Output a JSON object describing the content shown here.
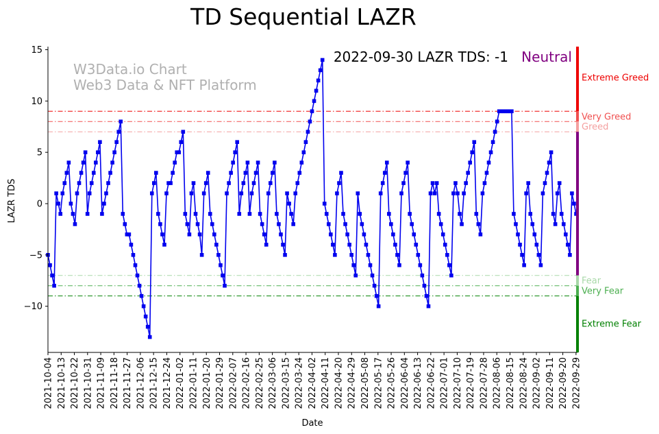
{
  "chart_data": {
    "type": "line",
    "title": "TD Sequential LAZR",
    "xlabel": "Date",
    "ylabel": "LAZR TDS",
    "ylim": [
      -14.5,
      15.3
    ],
    "yticks": [
      -10,
      -5,
      0,
      5,
      10,
      15
    ],
    "date_start": "2021-10-04",
    "date_end": "2022-09-30",
    "xticks": [
      "2021-10-04",
      "2021-10-13",
      "2021-10-22",
      "2021-10-31",
      "2021-11-09",
      "2021-11-18",
      "2021-11-27",
      "2021-12-06",
      "2021-12-15",
      "2021-12-24",
      "2022-01-02",
      "2022-01-11",
      "2022-01-20",
      "2022-01-29",
      "2022-02-07",
      "2022-02-16",
      "2022-02-25",
      "2022-03-06",
      "2022-03-15",
      "2022-03-24",
      "2022-04-02",
      "2022-04-11",
      "2022-04-20",
      "2022-04-29",
      "2022-05-08",
      "2022-05-17",
      "2022-05-26",
      "2022-06-04",
      "2022-06-13",
      "2022-06-22",
      "2022-07-01",
      "2022-07-10",
      "2022-07-19",
      "2022-07-28",
      "2022-08-06",
      "2022-08-15",
      "2022-08-24",
      "2022-09-02",
      "2022-09-11",
      "2022-09-20",
      "2022-09-29"
    ],
    "watermark": [
      "W3Data.io Chart",
      "Web3 Data & NFT Platform"
    ],
    "annotation": "2022-09-30 LAZR TDS: -1",
    "status_label": "Neutral",
    "status_color": "#800080",
    "line_color": "#0000ee",
    "thresholds": [
      {
        "value": 9,
        "label": "Extreme Greed",
        "color": "#ee0000"
      },
      {
        "value": 8,
        "label": "Very Greed",
        "color": "#f05050"
      },
      {
        "value": 7,
        "label": "Greed",
        "color": "#f4a0a0"
      },
      {
        "value": -7,
        "label": "Fear",
        "color": "#a8d8a8"
      },
      {
        "value": -8,
        "label": "Very Fear",
        "color": "#4caf50"
      },
      {
        "value": -9,
        "label": "Extreme Fear",
        "color": "#008000"
      }
    ],
    "zone_labels": [
      {
        "text": "Extreme Greed",
        "y": 12.3,
        "color": "#ee0000"
      },
      {
        "text": "Very Greed",
        "y": 8.5,
        "color": "#f05050"
      },
      {
        "text": "Greed",
        "y": 7.5,
        "color": "#f4a0a0"
      },
      {
        "text": "Fear",
        "y": -7.5,
        "color": "#a8d8a8"
      },
      {
        "text": "Very Fear",
        "y": -8.5,
        "color": "#4caf50"
      },
      {
        "text": "Extreme Fear",
        "y": -11.7,
        "color": "#008000"
      }
    ],
    "series": [
      {
        "name": "LAZR TDS",
        "values": [
          -5,
          -6,
          -7,
          -8,
          1,
          0,
          -1,
          1,
          2,
          3,
          4,
          0,
          -1,
          -2,
          1,
          2,
          3,
          4,
          5,
          -1,
          1,
          2,
          3,
          4,
          5,
          6,
          -1,
          0,
          1,
          2,
          3,
          4,
          5,
          6,
          7,
          8,
          -1,
          -2,
          -3,
          -3,
          -4,
          -5,
          -6,
          -7,
          -8,
          -9,
          -10,
          -11,
          -12,
          -13,
          1,
          2,
          3,
          -1,
          -2,
          -3,
          -4,
          1,
          2,
          2,
          3,
          4,
          5,
          5,
          6,
          7,
          -1,
          -2,
          -3,
          1,
          2,
          -1,
          -2,
          -3,
          -5,
          1,
          2,
          3,
          -1,
          -2,
          -3,
          -4,
          -5,
          -6,
          -7,
          -8,
          1,
          2,
          3,
          4,
          5,
          6,
          -1,
          1,
          2,
          3,
          4,
          -1,
          1,
          2,
          3,
          4,
          -1,
          -2,
          -3,
          -4,
          1,
          2,
          3,
          4,
          -1,
          -2,
          -3,
          -4,
          -5,
          1,
          0,
          -1,
          -2,
          1,
          2,
          3,
          4,
          5,
          6,
          7,
          8,
          9,
          10,
          11,
          12,
          13,
          14,
          0,
          -1,
          -2,
          -3,
          -4,
          -5,
          1,
          2,
          3,
          -1,
          -2,
          -3,
          -4,
          -5,
          -6,
          -7,
          1,
          -1,
          -2,
          -3,
          -4,
          -5,
          -6,
          -7,
          -8,
          -9,
          -10,
          1,
          2,
          3,
          4,
          -1,
          -2,
          -3,
          -4,
          -5,
          -6,
          1,
          2,
          3,
          4,
          -1,
          -2,
          -3,
          -4,
          -5,
          -6,
          -7,
          -8,
          -9,
          -10,
          1,
          2,
          1,
          2,
          -1,
          -2,
          -3,
          -4,
          -5,
          -6,
          -7,
          1,
          2,
          1,
          -1,
          -2,
          1,
          2,
          3,
          4,
          5,
          6,
          -1,
          -2,
          -3,
          1,
          2,
          3,
          4,
          5,
          6,
          7,
          8,
          9,
          9,
          9,
          9,
          9,
          9,
          9,
          -1,
          -2,
          -3,
          -4,
          -5,
          -6,
          1,
          2,
          -1,
          -2,
          -3,
          -4,
          -5,
          -6,
          1,
          2,
          3,
          4,
          5,
          -1,
          -2,
          1,
          2,
          -1,
          -2,
          -3,
          -4,
          -5,
          1,
          0,
          -1
        ]
      }
    ]
  }
}
